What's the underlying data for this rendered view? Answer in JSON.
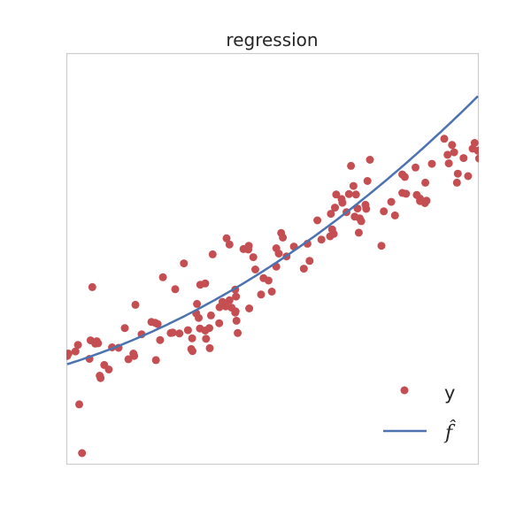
{
  "chart_data": {
    "type": "scatter",
    "title": "regression",
    "xlabel": "",
    "ylabel": "",
    "xlim": [
      0,
      1
    ],
    "ylim": [
      0,
      1
    ],
    "grid": false,
    "legend_placement": "lower-right",
    "colors": {
      "points": "#c44e52",
      "line": "#4c72b0",
      "frame": "#cccccc"
    },
    "series": [
      {
        "name": "y",
        "kind": "points",
        "points": [
          [
            0.0,
            0.263
          ],
          [
            0.003,
            0.269
          ],
          [
            0.02,
            0.274
          ],
          [
            0.026,
            0.29
          ],
          [
            0.029,
            0.145
          ],
          [
            0.036,
            0.026
          ],
          [
            0.054,
            0.256
          ],
          [
            0.057,
            0.301
          ],
          [
            0.061,
            0.431
          ],
          [
            0.068,
            0.293
          ],
          [
            0.072,
            0.299
          ],
          [
            0.075,
            0.294
          ],
          [
            0.079,
            0.215
          ],
          [
            0.081,
            0.209
          ],
          [
            0.09,
            0.241
          ],
          [
            0.101,
            0.23
          ],
          [
            0.109,
            0.284
          ],
          [
            0.125,
            0.283
          ],
          [
            0.14,
            0.331
          ],
          [
            0.149,
            0.255
          ],
          [
            0.161,
            0.269
          ],
          [
            0.163,
            0.263
          ],
          [
            0.166,
            0.388
          ],
          [
            0.181,
            0.316
          ],
          [
            0.205,
            0.346
          ],
          [
            0.214,
            0.344
          ],
          [
            0.216,
            0.253
          ],
          [
            0.22,
            0.341
          ],
          [
            0.226,
            0.302
          ],
          [
            0.233,
            0.455
          ],
          [
            0.252,
            0.319
          ],
          [
            0.257,
            0.32
          ],
          [
            0.263,
            0.426
          ],
          [
            0.273,
            0.318
          ],
          [
            0.284,
            0.489
          ],
          [
            0.294,
            0.326
          ],
          [
            0.302,
            0.28
          ],
          [
            0.305,
            0.275
          ],
          [
            0.304,
            0.306
          ],
          [
            0.314,
            0.367
          ],
          [
            0.316,
            0.39
          ],
          [
            0.32,
            0.356
          ],
          [
            0.323,
            0.33
          ],
          [
            0.324,
            0.437
          ],
          [
            0.336,
            0.325
          ],
          [
            0.338,
            0.305
          ],
          [
            0.336,
            0.44
          ],
          [
            0.346,
            0.331
          ],
          [
            0.347,
            0.282
          ],
          [
            0.35,
            0.362
          ],
          [
            0.354,
            0.511
          ],
          [
            0.37,
            0.343
          ],
          [
            0.371,
            0.382
          ],
          [
            0.378,
            0.395
          ],
          [
            0.386,
            0.384
          ],
          [
            0.388,
            0.55
          ],
          [
            0.395,
            0.535
          ],
          [
            0.395,
            0.399
          ],
          [
            0.4,
            0.381
          ],
          [
            0.409,
            0.425
          ],
          [
            0.409,
            0.369
          ],
          [
            0.41,
            0.372
          ],
          [
            0.411,
            0.408
          ],
          [
            0.412,
            0.349
          ],
          [
            0.415,
            0.319
          ],
          [
            0.429,
            0.524
          ],
          [
            0.441,
            0.523
          ],
          [
            0.442,
            0.532
          ],
          [
            0.443,
            0.379
          ],
          [
            0.453,
            0.504
          ],
          [
            0.458,
            0.474
          ],
          [
            0.472,
            0.413
          ],
          [
            0.478,
            0.453
          ],
          [
            0.49,
            0.447
          ],
          [
            0.498,
            0.42
          ],
          [
            0.509,
            0.481
          ],
          [
            0.509,
            0.526
          ],
          [
            0.515,
            0.513
          ],
          [
            0.521,
            0.563
          ],
          [
            0.525,
            0.552
          ],
          [
            0.534,
            0.506
          ],
          [
            0.552,
            0.53
          ],
          [
            0.576,
            0.476
          ],
          [
            0.585,
            0.537
          ],
          [
            0.59,
            0.495
          ],
          [
            0.609,
            0.594
          ],
          [
            0.619,
            0.547
          ],
          [
            0.64,
            0.555
          ],
          [
            0.642,
            0.61
          ],
          [
            0.645,
            0.572
          ],
          [
            0.649,
            0.561
          ],
          [
            0.652,
            0.625
          ],
          [
            0.655,
            0.657
          ],
          [
            0.668,
            0.646
          ],
          [
            0.67,
            0.637
          ],
          [
            0.68,
            0.614
          ],
          [
            0.686,
            0.658
          ],
          [
            0.691,
            0.727
          ],
          [
            0.697,
            0.678
          ],
          [
            0.7,
            0.603
          ],
          [
            0.703,
            0.657
          ],
          [
            0.707,
            0.623
          ],
          [
            0.71,
            0.564
          ],
          [
            0.712,
            0.599
          ],
          [
            0.716,
            0.592
          ],
          [
            0.726,
            0.632
          ],
          [
            0.728,
            0.622
          ],
          [
            0.731,
            0.69
          ],
          [
            0.737,
            0.742
          ],
          [
            0.765,
            0.532
          ],
          [
            0.771,
            0.616
          ],
          [
            0.789,
            0.639
          ],
          [
            0.798,
            0.606
          ],
          [
            0.816,
            0.661
          ],
          [
            0.825,
            0.659
          ],
          [
            0.816,
            0.706
          ],
          [
            0.822,
            0.7
          ],
          [
            0.848,
            0.723
          ],
          [
            0.851,
            0.656
          ],
          [
            0.859,
            0.641
          ],
          [
            0.859,
            0.647
          ],
          [
            0.871,
            0.636
          ],
          [
            0.872,
            0.686
          ],
          [
            0.875,
            0.642
          ],
          [
            0.888,
            0.732
          ],
          [
            0.918,
            0.793
          ],
          [
            0.929,
            0.733
          ],
          [
            0.926,
            0.754
          ],
          [
            0.937,
            0.778
          ],
          [
            0.942,
            0.76
          ],
          [
            0.949,
            0.686
          ],
          [
            0.951,
            0.708
          ],
          [
            0.965,
            0.746
          ],
          [
            0.976,
            0.702
          ],
          [
            0.987,
            0.769
          ],
          [
            0.992,
            0.783
          ],
          [
            1.0,
            0.764
          ],
          [
            1.003,
            0.745
          ]
        ]
      },
      {
        "name": "f̂",
        "kind": "line",
        "poly": [
          0.243,
          0.314,
          0.34
        ],
        "x_range": [
          0,
          1
        ]
      }
    ],
    "legend": [
      {
        "label": "y",
        "kind": "points"
      },
      {
        "label": "f̂",
        "kind": "line"
      }
    ]
  }
}
